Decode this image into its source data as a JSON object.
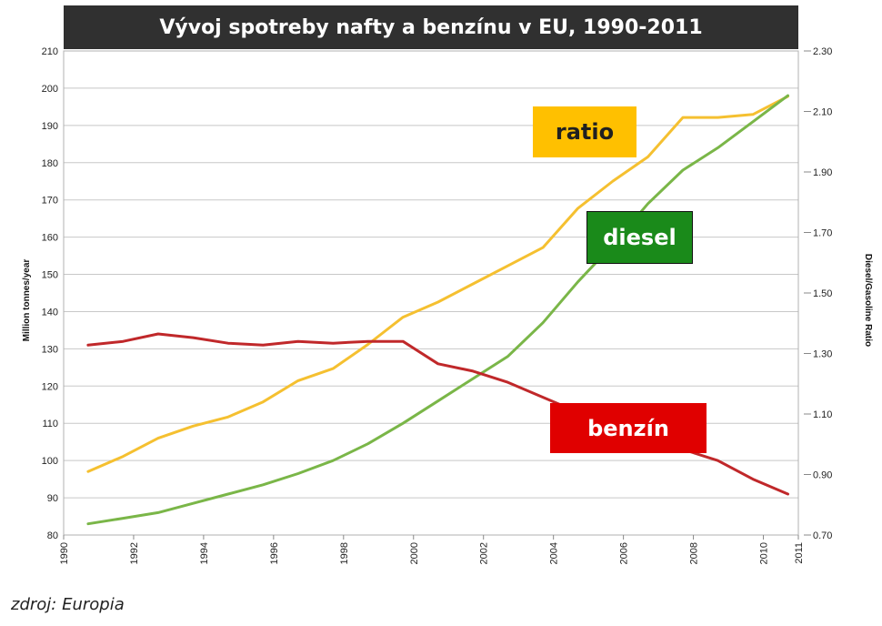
{
  "chart_data": {
    "type": "line",
    "title": "Vývoj spotreby nafty a benzínu v EU, 1990-2011",
    "ylabel": "Million tonnes/year",
    "y2label": "Diesel/Gasoline Ratio",
    "xlim": [
      1990,
      2011
    ],
    "ylim": [
      80,
      210
    ],
    "y2lim": [
      0.7,
      2.3
    ],
    "x_ticks": [
      "1990",
      "1992",
      "1994",
      "1996",
      "1998",
      "2000",
      "2002",
      "2004",
      "2006",
      "2008",
      "2010",
      "2011"
    ],
    "y_ticks": [
      "80",
      "90",
      "100",
      "110",
      "120",
      "130",
      "140",
      "150",
      "160",
      "170",
      "180",
      "190",
      "200",
      "210"
    ],
    "y2_ticks": [
      "0.70",
      "0.90",
      "1.10",
      "1.30",
      "1.50",
      "1.70",
      "1.90",
      "2.10",
      "2.30"
    ],
    "series": [
      {
        "name": "ratio",
        "axis": "right",
        "color": "#f5c030",
        "x": [
          1990.7,
          1991.7,
          1992.7,
          1993.7,
          1994.7,
          1995.7,
          1996.7,
          1997.7,
          1998.7,
          1999.7,
          2000.7,
          2001.7,
          2002.7,
          2003.7,
          2004.7,
          2005.7,
          2006.7,
          2007.7,
          2008.7,
          2009.7,
          2010.7
        ],
        "values": [
          0.91,
          0.96,
          1.02,
          1.06,
          1.09,
          1.14,
          1.21,
          1.25,
          1.33,
          1.42,
          1.47,
          1.53,
          1.59,
          1.65,
          1.78,
          1.87,
          1.95,
          2.08,
          2.08,
          2.09,
          2.15
        ]
      },
      {
        "name": "diesel",
        "axis": "left",
        "color": "#7ab648",
        "x": [
          1990.7,
          1991.7,
          1992.7,
          1993.7,
          1994.7,
          1995.7,
          1996.7,
          1997.7,
          1998.7,
          1999.7,
          2000.7,
          2001.7,
          2002.7,
          2003.7,
          2004.7,
          2005.7,
          2006.7,
          2007.7,
          2008.7,
          2009.7,
          2010.7
        ],
        "values": [
          83,
          84.5,
          86,
          88.5,
          91,
          93.5,
          96.5,
          100,
          104.5,
          110,
          116,
          122,
          128,
          137,
          148,
          158,
          169,
          178,
          184,
          191,
          198
        ]
      },
      {
        "name": "benzín",
        "axis": "left",
        "color": "#c0282a",
        "x": [
          1990.7,
          1991.7,
          1992.7,
          1993.7,
          1994.7,
          1995.7,
          1996.7,
          1997.7,
          1998.7,
          1999.7,
          2000.7,
          2001.7,
          2002.7,
          2003.7,
          2004.7,
          2005.7,
          2006.7,
          2007.7,
          2008.7,
          2009.7,
          2010.7
        ],
        "values": [
          131,
          132,
          134,
          133,
          131.5,
          131,
          132,
          131.5,
          132,
          132,
          126,
          124,
          121,
          117,
          113,
          109,
          106,
          103,
          100,
          95,
          91
        ]
      }
    ],
    "annotations": [
      {
        "name": "ratio",
        "text": "ratio"
      },
      {
        "name": "diesel",
        "text": "diesel"
      },
      {
        "name": "benzin",
        "text": "benzín"
      }
    ]
  },
  "source_note": "zdroj: Europia"
}
